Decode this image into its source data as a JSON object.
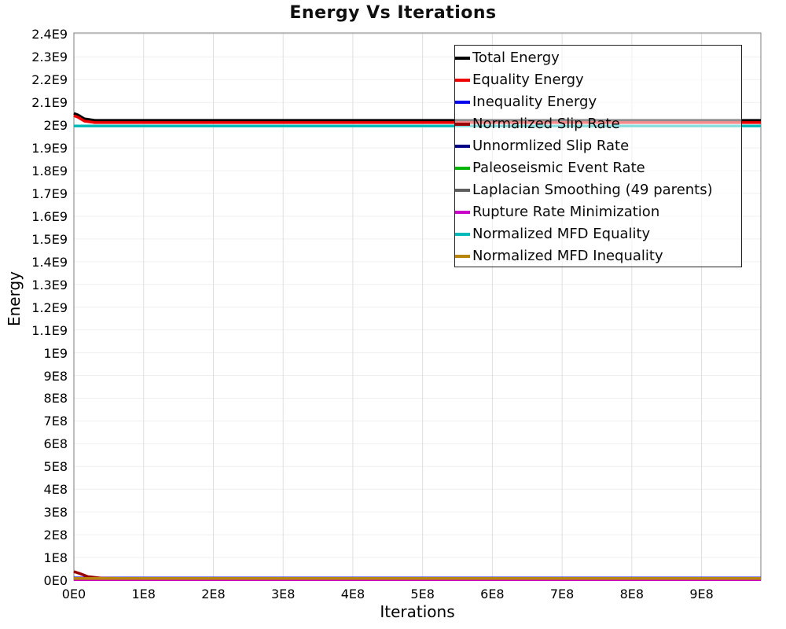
{
  "title": "Energy Vs Iterations",
  "chart_data": {
    "type": "line",
    "title": "Energy Vs Iterations",
    "xlabel": "Iterations",
    "ylabel": "Energy",
    "xlim": [
      0,
      985000000
    ],
    "ylim": [
      0,
      2405000000
    ],
    "grid": true,
    "legend_position": "top-right",
    "x_ticks": [
      {
        "v": 0,
        "label": "0E0"
      },
      {
        "v": 100000000,
        "label": "1E8"
      },
      {
        "v": 200000000,
        "label": "2E8"
      },
      {
        "v": 300000000,
        "label": "3E8"
      },
      {
        "v": 400000000,
        "label": "4E8"
      },
      {
        "v": 500000000,
        "label": "5E8"
      },
      {
        "v": 600000000,
        "label": "6E8"
      },
      {
        "v": 700000000,
        "label": "7E8"
      },
      {
        "v": 800000000,
        "label": "8E8"
      },
      {
        "v": 900000000,
        "label": "9E8"
      }
    ],
    "y_ticks": [
      {
        "v": 0,
        "label": "0E0"
      },
      {
        "v": 100000000,
        "label": "1E8"
      },
      {
        "v": 200000000,
        "label": "2E8"
      },
      {
        "v": 300000000,
        "label": "3E8"
      },
      {
        "v": 400000000,
        "label": "4E8"
      },
      {
        "v": 500000000,
        "label": "5E8"
      },
      {
        "v": 600000000,
        "label": "6E8"
      },
      {
        "v": 700000000,
        "label": "7E8"
      },
      {
        "v": 800000000,
        "label": "8E8"
      },
      {
        "v": 900000000,
        "label": "9E8"
      },
      {
        "v": 1000000000,
        "label": "1E9"
      },
      {
        "v": 1100000000,
        "label": "1.1E9"
      },
      {
        "v": 1200000000,
        "label": "1.2E9"
      },
      {
        "v": 1300000000,
        "label": "1.3E9"
      },
      {
        "v": 1400000000,
        "label": "1.4E9"
      },
      {
        "v": 1500000000,
        "label": "1.5E9"
      },
      {
        "v": 1600000000,
        "label": "1.6E9"
      },
      {
        "v": 1700000000,
        "label": "1.7E9"
      },
      {
        "v": 1800000000,
        "label": "1.8E9"
      },
      {
        "v": 1900000000,
        "label": "1.9E9"
      },
      {
        "v": 2000000000,
        "label": "2E9"
      },
      {
        "v": 2100000000,
        "label": "2.1E9"
      },
      {
        "v": 2200000000,
        "label": "2.2E9"
      },
      {
        "v": 2300000000,
        "label": "2.3E9"
      },
      {
        "v": 2400000000,
        "label": "2.4E9"
      }
    ],
    "series": [
      {
        "name": "Total Energy",
        "color": "#000000",
        "points": [
          [
            0,
            2052000000
          ],
          [
            6000000,
            2045000000
          ],
          [
            15000000,
            2028000000
          ],
          [
            30000000,
            2021000000
          ],
          [
            985000000,
            2021000000
          ]
        ]
      },
      {
        "name": "Equality Energy",
        "color": "#ee0000",
        "points": [
          [
            0,
            2042000000
          ],
          [
            6000000,
            2035000000
          ],
          [
            15000000,
            2018000000
          ],
          [
            30000000,
            2011500000
          ],
          [
            985000000,
            2011500000
          ]
        ]
      },
      {
        "name": "Inequality Energy",
        "color": "#0000ee",
        "points": [
          [
            0,
            10000000
          ],
          [
            30000000,
            9500000
          ],
          [
            985000000,
            9500000
          ]
        ]
      },
      {
        "name": "Normalized Slip Rate",
        "color": "#9b0000",
        "points": [
          [
            0,
            38000000
          ],
          [
            8000000,
            30000000
          ],
          [
            20000000,
            16000000
          ],
          [
            40000000,
            9000000
          ],
          [
            70000000,
            8000000
          ],
          [
            985000000,
            8000000
          ]
        ]
      },
      {
        "name": "Unnormlized Slip Rate",
        "color": "#000085",
        "points": [
          [
            0,
            6500000
          ],
          [
            985000000,
            6500000
          ]
        ]
      },
      {
        "name": "Paleoseismic Event Rate",
        "color": "#00b400",
        "points": [
          [
            0,
            5000000
          ],
          [
            985000000,
            5000000
          ]
        ]
      },
      {
        "name": "Laplacian Smoothing (49 parents)",
        "color": "#5e5e5e",
        "points": [
          [
            0,
            3500000
          ],
          [
            985000000,
            3500000
          ]
        ]
      },
      {
        "name": "Rupture Rate Minimization",
        "color": "#c800c8",
        "points": [
          [
            0,
            2500000
          ],
          [
            985000000,
            2500000
          ]
        ]
      },
      {
        "name": "Normalized MFD Equality",
        "color": "#00b9b9",
        "points": [
          [
            0,
            1996500000
          ],
          [
            985000000,
            1996500000
          ]
        ]
      },
      {
        "name": "Normalized MFD Inequality",
        "color": "#b8860b",
        "points": [
          [
            0,
            8000000
          ],
          [
            985000000,
            8000000
          ]
        ]
      }
    ]
  }
}
